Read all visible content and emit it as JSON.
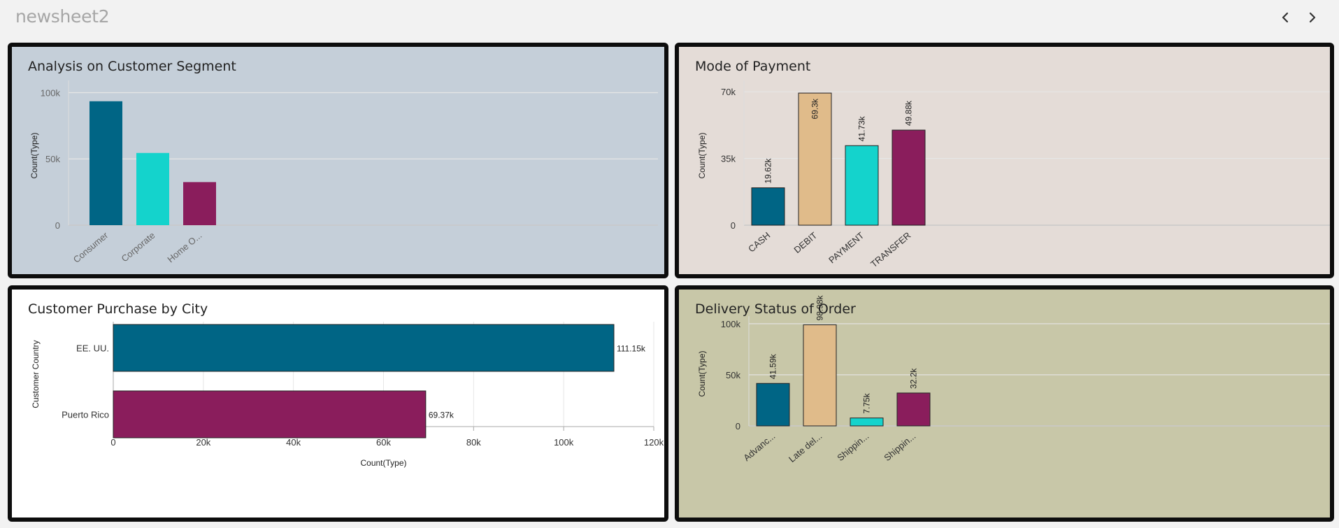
{
  "sheet": {
    "title": "newsheet2"
  },
  "nav": {
    "prev_icon": "chevron-left-icon",
    "next_icon": "chevron-right-icon"
  },
  "chart_data": [
    {
      "id": "segment",
      "type": "bar",
      "title": "Analysis on Customer Segment",
      "ylabel": "Count(Type)",
      "xlabel": "",
      "categories": [
        "Consumer",
        "Corporate",
        "Home O..."
      ],
      "values": [
        93500,
        54500,
        32500
      ],
      "colors": [
        "#006585",
        "#14d3cc",
        "#8a1d5c"
      ],
      "yticks": [
        0,
        50000,
        100000
      ],
      "ytick_labels": [
        "0",
        "50k",
        "100k"
      ],
      "ylim": [
        0,
        105000
      ],
      "data_labels": false,
      "background": "#c5cfd9",
      "grid": true
    },
    {
      "id": "payment",
      "type": "bar",
      "title": "Mode of Payment",
      "ylabel": "Count(Type)",
      "xlabel": "",
      "categories": [
        "CASH",
        "DEBIT",
        "PAYMENT",
        "TRANSFER"
      ],
      "values": [
        19620,
        69300,
        41730,
        49880
      ],
      "value_labels": [
        "19.62k",
        "69.3k",
        "41.73k",
        "49.88k"
      ],
      "colors": [
        "#006585",
        "#e0bb8a",
        "#14d3cc",
        "#8a1d5c"
      ],
      "yticks": [
        0,
        35000,
        70000
      ],
      "ytick_labels": [
        "0",
        "35k",
        "70k"
      ],
      "ylim": [
        0,
        73000
      ],
      "data_labels": true,
      "background": "#e4dcd7",
      "grid": true
    },
    {
      "id": "city",
      "type": "bar",
      "orientation": "horizontal",
      "title": "Customer Purchase by City",
      "ylabel": "Customer Country",
      "xlabel": "Count(Type)",
      "categories": [
        "EE. UU.",
        "Puerto Rico"
      ],
      "values": [
        111150,
        69370
      ],
      "value_labels": [
        "111.15k",
        "69.37k"
      ],
      "colors": [
        "#006585",
        "#8a1d5c"
      ],
      "xticks": [
        0,
        20000,
        40000,
        60000,
        80000,
        100000,
        120000
      ],
      "xtick_labels": [
        "0",
        "20k",
        "40k",
        "60k",
        "80k",
        "100k",
        "120k"
      ],
      "xlim": [
        0,
        120000
      ],
      "data_labels": true,
      "background": "#ffffff",
      "grid": true
    },
    {
      "id": "delivery",
      "type": "bar",
      "title": "Delivery Status of Order",
      "ylabel": "Count(Type)",
      "xlabel": "",
      "categories": [
        "Advanc...",
        "Late del...",
        "Shippin...",
        "Shippin..."
      ],
      "values": [
        41590,
        98980,
        7750,
        32200
      ],
      "value_labels": [
        "41.59k",
        "98.98k",
        "7.75k",
        "32.2k"
      ],
      "colors": [
        "#006585",
        "#e0bb8a",
        "#14d3cc",
        "#8a1d5c"
      ],
      "yticks": [
        0,
        50000,
        100000
      ],
      "ytick_labels": [
        "0",
        "50k",
        "100k"
      ],
      "ylim": [
        0,
        102000
      ],
      "data_labels": true,
      "background": "#c8c7a8",
      "grid": true
    }
  ]
}
